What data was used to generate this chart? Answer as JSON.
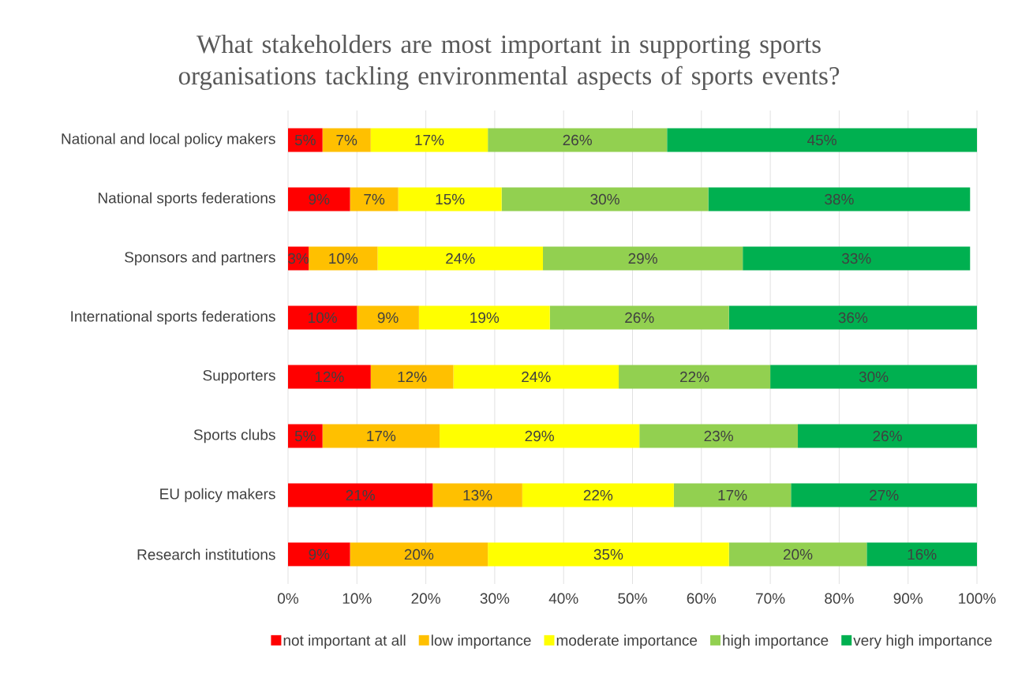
{
  "chart_data": {
    "type": "bar",
    "orientation": "horizontal",
    "stacked": true,
    "title": "What stakeholders are most important in supporting sports organisations tackling environmental aspects of sports events?",
    "categories": [
      "National and local policy makers",
      "National sports federations",
      "Sponsors and partners",
      "International sports federations",
      "Supporters",
      "Sports clubs",
      "EU policy makers",
      "Research institutions"
    ],
    "series": [
      {
        "name": "not important at all",
        "color": "#ff0000",
        "values": [
          5,
          9,
          3,
          10,
          12,
          5,
          21,
          9
        ],
        "value_labels": [
          "5%",
          "9%",
          "3%",
          "10%",
          "12%",
          "5%",
          "21%",
          "9%"
        ]
      },
      {
        "name": "low importance",
        "color": "#ffc000",
        "values": [
          7,
          7,
          10,
          9,
          12,
          17,
          13,
          20
        ],
        "value_labels": [
          "7%",
          "7%",
          "10%",
          "9%",
          "12%",
          "17%",
          "13%",
          "20%"
        ]
      },
      {
        "name": "moderate importance",
        "color": "#ffff00",
        "values": [
          17,
          15,
          24,
          19,
          24,
          29,
          22,
          35
        ],
        "value_labels": [
          "17%",
          "15%",
          "24%",
          "19%",
          "24%",
          "29%",
          "22%",
          "35%"
        ]
      },
      {
        "name": "high importance",
        "color": "#92d050",
        "values": [
          26,
          30,
          29,
          26,
          22,
          23,
          17,
          20
        ],
        "value_labels": [
          "26%",
          "30%",
          "29%",
          "26%",
          "22%",
          "23%",
          "17%",
          "20%"
        ]
      },
      {
        "name": "very high importance",
        "color": "#00b050",
        "values": [
          45,
          38,
          33,
          36,
          30,
          26,
          27,
          16
        ],
        "value_labels": [
          "45%",
          "38%",
          "33%",
          "36%",
          "30%",
          "26%",
          "27%",
          "16%"
        ]
      }
    ],
    "xlim": [
      0,
      100
    ],
    "xticks": [
      {
        "value": 0,
        "label": "0%"
      },
      {
        "value": 10,
        "label": "10%"
      },
      {
        "value": 20,
        "label": "20%"
      },
      {
        "value": 30,
        "label": "30%"
      },
      {
        "value": 40,
        "label": "40%"
      },
      {
        "value": 50,
        "label": "50%"
      },
      {
        "value": 60,
        "label": "60%"
      },
      {
        "value": 70,
        "label": "70%"
      },
      {
        "value": 80,
        "label": "80%"
      },
      {
        "value": 90,
        "label": "90%"
      },
      {
        "value": 100,
        "label": "100%"
      }
    ],
    "grid": "x",
    "legend": "bottom"
  }
}
